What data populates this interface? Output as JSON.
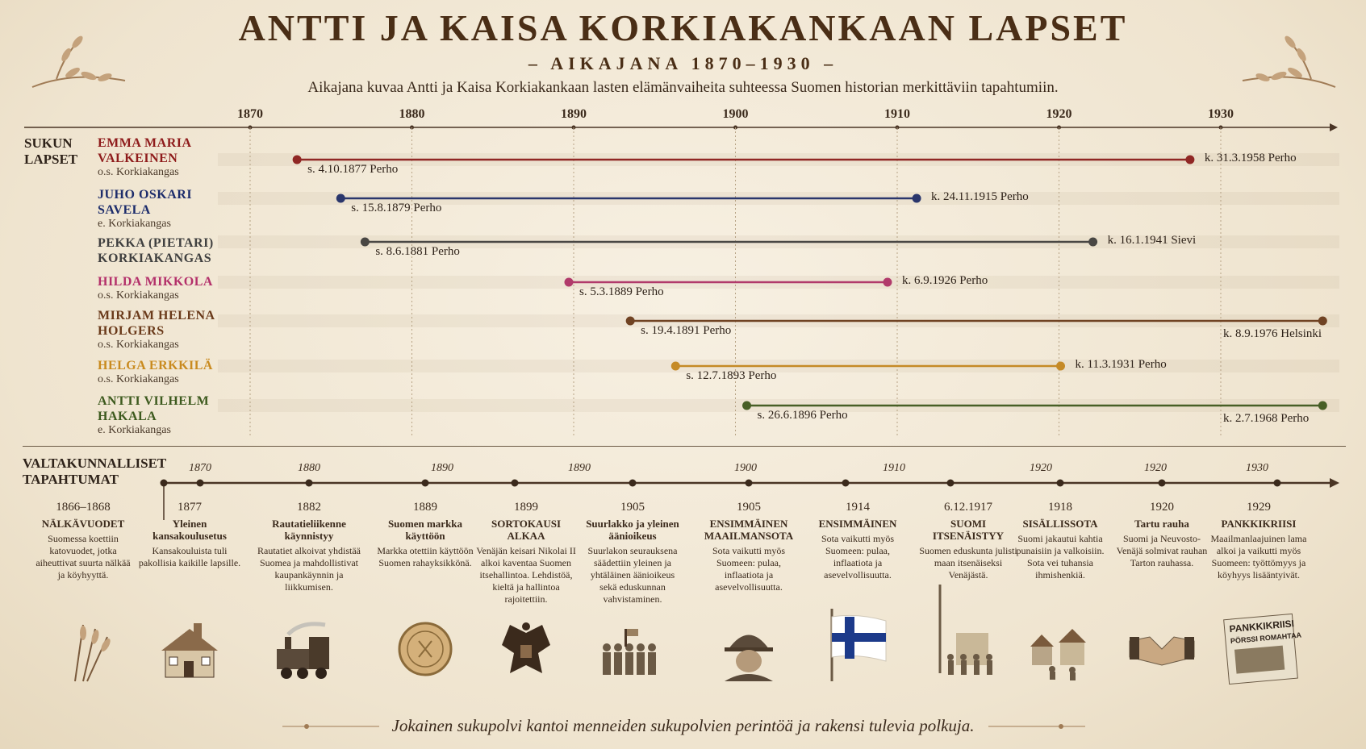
{
  "header": {
    "title": "ANTTI JA KAISA KORKIAKANKAAN LAPSET",
    "subtitle": "– AIKAJANA 1870–1930 –",
    "description": "Aikajana kuvaa Antti ja Kaisa Korkiakankaan lasten elämänvaiheita suhteessa Suomen historian merkittäviin tapahtumiin."
  },
  "top_axis": {
    "years": [
      "1870",
      "1880",
      "1890",
      "1900",
      "1910",
      "1920",
      "1930"
    ]
  },
  "children_section": {
    "label_line1": "SUKUN",
    "label_line2": "LAPSET"
  },
  "children": [
    {
      "name1": "EMMA MARIA",
      "name2": "VALKEINEN",
      "sub": "o.s. Korkiakangas",
      "born": "s. 4.10.1877 Perho",
      "died": "k. 31.3.1958 Perho",
      "color": "#8e1b1b",
      "start": 1872.9,
      "end": 1928.1
    },
    {
      "name1": "JUHO OSKARI",
      "name2": "SAVELA",
      "sub": "e. Korkiakangas",
      "born": "s. 15.8.1879 Perho",
      "died": "k. 24.11.1915 Perho",
      "color": "#1c2c6b",
      "start": 1875.6,
      "end": 1911.2
    },
    {
      "name1": "PEKKA (PIETARI)",
      "name2": "KORKIAKANGAS",
      "sub": "",
      "born": "s. 8.6.1881 Perho",
      "died": "k. 16.1.1941 Sievi",
      "color": "#3f3f3f",
      "start": 1877.1,
      "end": 1922.1
    },
    {
      "name1": "HILDA MIKKOLA",
      "name2": "",
      "sub": "o.s. Korkiakangas",
      "born": "s. 5.3.1889 Perho",
      "died": "k. 6.9.1926 Perho",
      "color": "#b3306a",
      "start": 1889.7,
      "end": 1909.4
    },
    {
      "name1": "MIRJAM HELENA",
      "name2": "HOLGERS",
      "sub": "o.s. Korkiakangas",
      "born": "s. 19.4.1891 Perho",
      "died": "k. 8.9.1976 Helsinki",
      "color": "#6a3a1a",
      "start": 1893.5,
      "end": 1936.3
    },
    {
      "name1": "HELGA ERKKILÄ",
      "name2": "",
      "sub": "o.s. Korkiakangas",
      "born": "s. 12.7.1893 Perho",
      "died": "k. 11.3.1931 Perho",
      "color": "#c98a1e",
      "start": 1896.3,
      "end": 1920.1
    },
    {
      "name1": "ANTTI VILHELM",
      "name2": "HAKALA",
      "sub": "e. Korkiakangas",
      "born": "s. 26.6.1896 Perho",
      "died": "k. 2.7.1968 Perho",
      "color": "#3d5a1e",
      "start": 1900.7,
      "end": 1936.3
    }
  ],
  "events_section": {
    "label_line1": "VALTAKUNNALLISET",
    "label_line2": "TAPAHTUMAT"
  },
  "events_axis_years": [
    "1870",
    "1880",
    "1890",
    "1890",
    "1900",
    "1910",
    "1920",
    "1920",
    "1930"
  ],
  "events": [
    {
      "year": "1866–1868",
      "title": "NÄLKÄVUODET",
      "text": "Suomessa koettiin katovuodet, jotka aiheuttivat suurta nälkää ja köyhyyttä.",
      "icon": "wheat-icon"
    },
    {
      "year": "1877",
      "title": "Yleinen kansakoulusetus",
      "text": "Kansakouluista tuli pakollisia kaikille lapsille.",
      "icon": "school-icon"
    },
    {
      "year": "1882",
      "title": "Rautatieliikenne käynnistyy",
      "text": "Rautatiet alkoivat yhdistää Suomea ja mahdollistivat kaupankäynnin ja liikkumisen.",
      "icon": "train-icon"
    },
    {
      "year": "1889",
      "title": "Suomen markka käyttöön",
      "text": "Markka otettiin käyttöön Suomen rahayksikkönä.",
      "icon": "coin-icon"
    },
    {
      "year": "1899",
      "title": "SORTOKAUSI ALKAA",
      "text": "Venäjän keisari Nikolai II alkoi kaventaa Suomen itsehallintoa. Lehdistöä, kieltä ja hallintoa rajoitettiin.",
      "icon": "double-eagle-icon"
    },
    {
      "year": "1905",
      "title": "Suurlakko ja yleinen äänioikeus",
      "text": "Suurlakon seurauksena säädettiin yleinen ja yhtäläinen äänioikeus sekä eduskunnan vahvistaminen.",
      "icon": "crowd-icon"
    },
    {
      "year": "1905",
      "title": "ENSIMMÄINEN MAAILMANSOTA",
      "text": "Sota vaikutti myös Suomeen: pulaa, inflaatiota ja asevelvollisuutta.",
      "icon": "soldier-icon"
    },
    {
      "year": "1914",
      "title": "ENSIMMÄINEN",
      "text": "Sota vaikutti myös Suomeen: pulaa, inflaatiota ja asevelvollisuutta.",
      "icon": "finnish-flag-icon"
    },
    {
      "year": "6.12.1917",
      "title": "SUOMI ITSENÄISTYY",
      "text": "Suomen eduskunta julisti maan itsenäiseksi Venäjästä.",
      "icon": "street-scene-icon"
    },
    {
      "year": "1918",
      "title": "SISÄLLISSOTA",
      "text": "Suomi jakautui kahtia punaisiin ja valkoisiin. Sota vei tuhansia ihmishenkiä.",
      "icon": "village-icon"
    },
    {
      "year": "1920",
      "title": "Tartu rauha",
      "text": "Suomi ja Neuvosto-Venäjä solmivat rauhan Tarton rauhassa.",
      "icon": "handshake-icon"
    },
    {
      "year": "1929",
      "title": "PANKKIKRIISI",
      "text": "Maailmanlaajuinen lama alkoi ja vaikutti myös Suomeen: työttömyys ja köyhyys lisääntyivät.",
      "icon": "newspaper-icon",
      "paper_head": "PANKKIKRIISI",
      "paper_sub": "PÖRSSI ROMAHTAA"
    }
  ],
  "footer": "Jokainen sukupolvi kantoi menneiden sukupolvien perintöä ja rakensi tulevia polkuja."
}
